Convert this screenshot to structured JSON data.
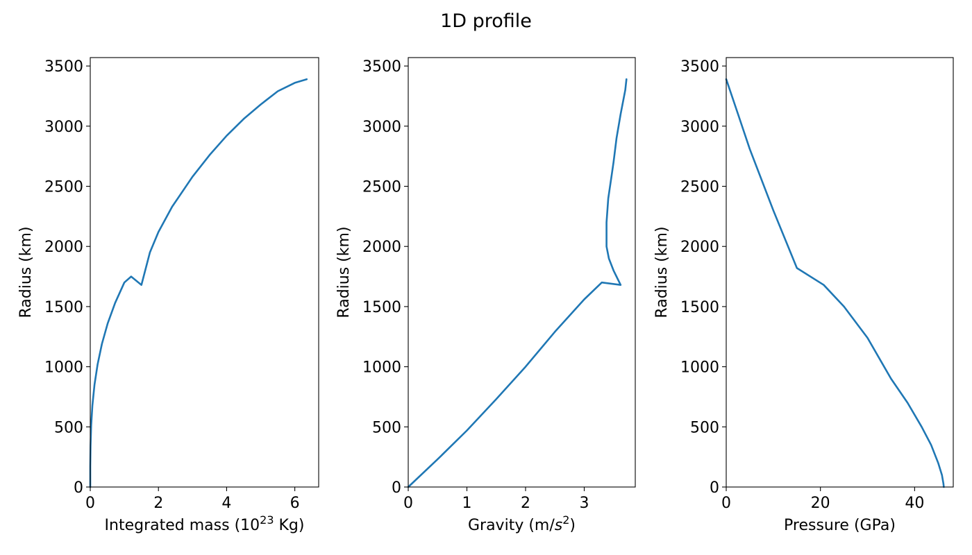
{
  "figure": {
    "title": "1D profile"
  },
  "chart_data": [
    {
      "type": "line",
      "title": "",
      "xlabel": "Integrated mass (10^23 Kg)",
      "xlabel_parts": [
        "Integrated mass (10",
        "23",
        " Kg)"
      ],
      "ylabel": "Radius (km)",
      "xlim": [
        0,
        6.7
      ],
      "ylim": [
        0,
        3570
      ],
      "xticks": [
        0,
        2,
        4,
        6
      ],
      "yticks": [
        0,
        500,
        1000,
        1500,
        2000,
        2500,
        3000,
        3500
      ],
      "grid": false,
      "line_color": "#1f77b4",
      "series": [
        {
          "x": [
            0,
            0.001,
            0.008,
            0.027,
            0.064,
            0.125,
            0.216,
            0.343,
            0.512,
            0.729,
            1.0,
            1.2,
            1.5,
            1.75,
            2.0,
            2.4,
            3.0,
            3.5,
            4.0,
            4.5,
            5.0,
            5.5,
            6.0,
            6.35
          ],
          "y": [
            0,
            170,
            340,
            510,
            680,
            850,
            1020,
            1190,
            1360,
            1530,
            1700,
            1750,
            1680,
            1950,
            2120,
            2330,
            2580,
            2760,
            2920,
            3060,
            3180,
            3290,
            3360,
            3390
          ]
        }
      ]
    },
    {
      "type": "line",
      "title": "",
      "xlabel": "Gravity (m/s^2)",
      "xlabel_parts": [
        "Gravity (m/",
        "s",
        "2",
        ")"
      ],
      "ylabel": "Radius (km)",
      "xlim": [
        0,
        3.87
      ],
      "ylim": [
        0,
        3570
      ],
      "xticks": [
        0,
        1,
        2,
        3
      ],
      "yticks": [
        0,
        500,
        1000,
        1500,
        2000,
        2500,
        3000,
        3500
      ],
      "grid": false,
      "line_color": "#1f77b4",
      "series": [
        {
          "x": [
            0,
            0.5,
            1.0,
            1.5,
            2.0,
            2.5,
            3.0,
            3.3,
            3.62,
            3.5,
            3.42,
            3.38,
            3.38,
            3.41,
            3.47,
            3.5,
            3.55,
            3.62,
            3.7,
            3.72
          ],
          "y": [
            0,
            230,
            470,
            730,
            1000,
            1290,
            1560,
            1700,
            1680,
            1800,
            1900,
            2000,
            2200,
            2400,
            2600,
            2700,
            2900,
            3100,
            3300,
            3390
          ]
        }
      ]
    },
    {
      "type": "line",
      "title": "",
      "xlabel": "Pressure (GPa)",
      "xlabel_parts": [
        "Pressure (GPa)"
      ],
      "ylabel": "Radius (km)",
      "xlim": [
        0,
        48.2
      ],
      "ylim": [
        0,
        3570
      ],
      "xticks": [
        0,
        20,
        40
      ],
      "yticks": [
        0,
        500,
        1000,
        1500,
        2000,
        2500,
        3000,
        3500
      ],
      "grid": false,
      "line_color": "#1f77b4",
      "series": [
        {
          "x": [
            0,
            2.5,
            5,
            10,
            15,
            20.7,
            25,
            30,
            35,
            38.5,
            41.5,
            43.5,
            45.0,
            45.8,
            46.1,
            46.2
          ],
          "y": [
            3390,
            3100,
            2810,
            2300,
            1820,
            1680,
            1500,
            1240,
            900,
            700,
            500,
            350,
            200,
            100,
            30,
            0
          ]
        }
      ]
    }
  ]
}
